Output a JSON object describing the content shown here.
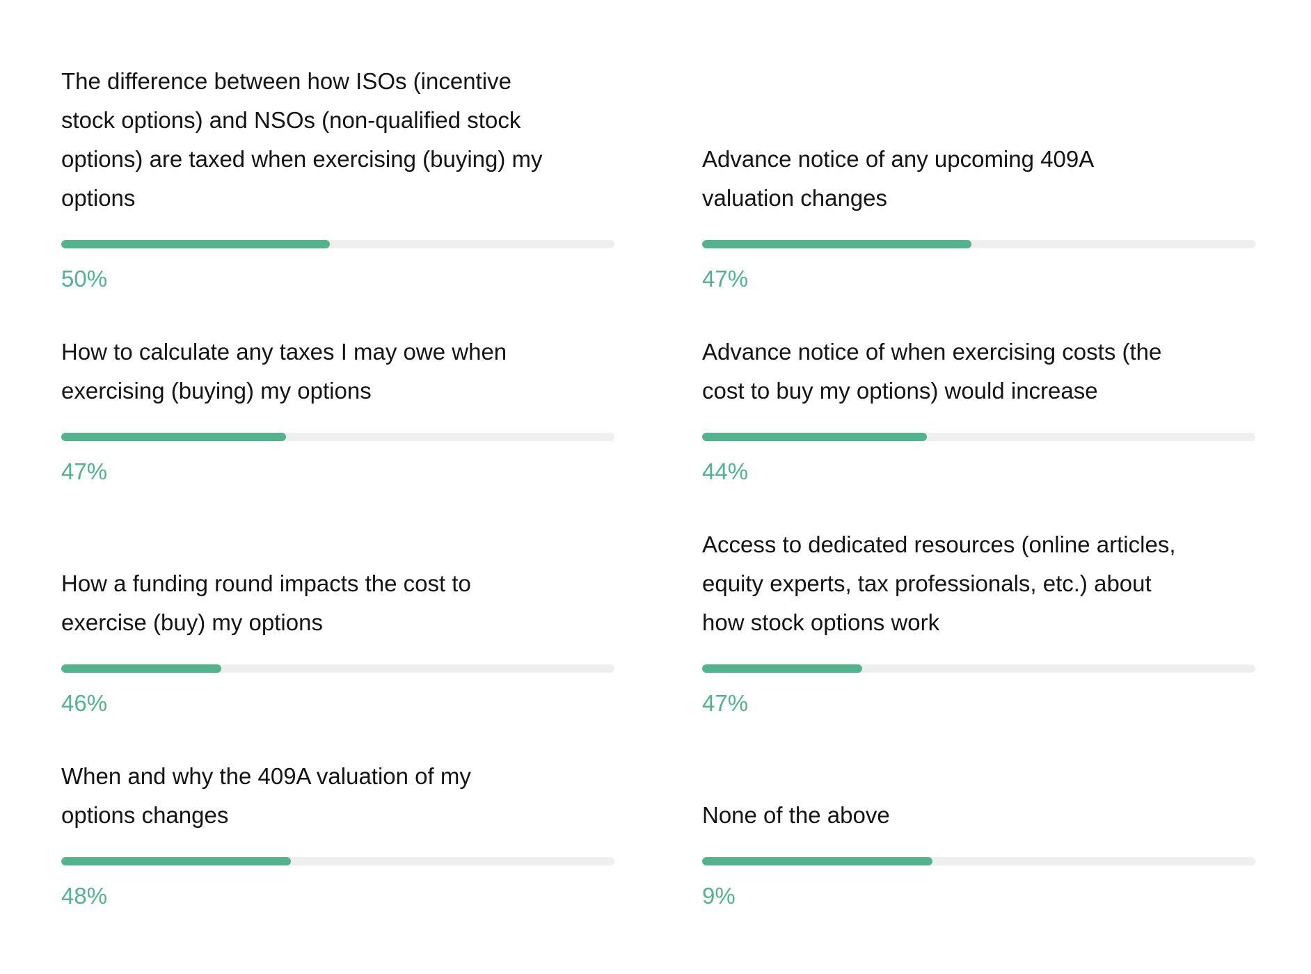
{
  "items": [
    {
      "lines": [
        "The difference between how ISOs (incentive",
        "stock options) and NSOs (non-qualified stock",
        "options) are taxed when exercising (buying) my",
        "options"
      ],
      "percent": "50%",
      "fill": 48.6
    },
    {
      "lines": [
        "Advance notice of any upcoming 409A",
        "valuation changes"
      ],
      "percent": "47%",
      "fill": 48.7
    },
    {
      "lines": [
        "How to calculate any taxes I may owe when",
        "exercising (buying) my options"
      ],
      "percent": "47%",
      "fill": 40.6
    },
    {
      "lines": [
        "Advance notice of when exercising costs (the",
        "cost to buy my options) would increase"
      ],
      "percent": "44%",
      "fill": 40.6
    },
    {
      "lines": [
        "How a funding round impacts the cost to",
        "exercise (buy) my options"
      ],
      "percent": "46%",
      "fill": 28.9
    },
    {
      "lines": [
        "Access to dedicated resources (online articles,",
        "equity experts, tax professionals, etc.) about",
        "how stock options work"
      ],
      "percent": "47%",
      "fill": 28.9
    },
    {
      "lines": [
        "When and why the 409A valuation of my",
        "options changes"
      ],
      "percent": "48%",
      "fill": 41.5
    },
    {
      "lines": [
        "None of the above"
      ],
      "percent": "9%",
      "fill": 41.6
    }
  ]
}
